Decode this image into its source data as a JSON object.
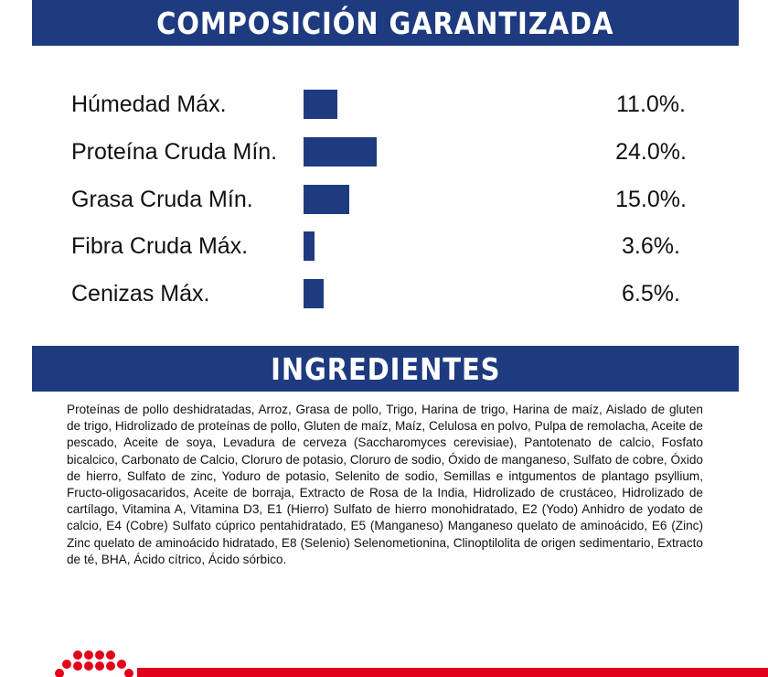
{
  "header": {
    "title": "COMPOSICIÓN GARANTIZADA"
  },
  "composition": {
    "color": "#1e3b80",
    "items": [
      {
        "label": "Húmedad Máx.",
        "value": 11.0,
        "value_label": "11.0%."
      },
      {
        "label": "Proteína Cruda Mín.",
        "value": 24.0,
        "value_label": "24.0%."
      },
      {
        "label": "Grasa Cruda Mín.",
        "value": 15.0,
        "value_label": "15.0%."
      },
      {
        "label": "Fibra Cruda Máx.",
        "value": 3.6,
        "value_label": "3.6%."
      },
      {
        "label": "Cenizas Máx.",
        "value": 6.5,
        "value_label": "6.5%."
      }
    ]
  },
  "ingredients": {
    "title": "INGREDIENTES",
    "text": "Proteínas de pollo deshidratadas, Arroz, Grasa de pollo, Trigo, Harina de trigo, Harina de maíz, Aislado de gluten de trigo, Hidrolizado de proteínas de pollo, Gluten de maíz, Maíz, Celulosa en polvo, Pulpa de remolacha, Aceite de pescado, Aceite de soya, Levadura de cerveza (Saccharomyces cerevisiae), Pantotenato de calcio, Fosfato bicalcico, Carbonato de Calcio, Cloruro de potasio, Cloruro de sodio, Óxido de manganeso, Sulfato de cobre, Óxido de hierro, Sulfato de zinc, Yoduro de potasio, Selenito de sodio, Semillas e intgumentos de plantago psyllium, Fructo-oligosacaridos, Aceite de borraja, Extracto de Rosa de la India, Hidrolizado de crustáceo, Hidrolizado de cartílago, Vitamina A, Vitamina D3, E1 (Hierro) Sulfato de hierro monohidratado, E2 (Yodo) Anhidro de yodato de calcio, E4 (Cobre) Sulfato cúprico pentahidratado, E5 (Manganeso) Manganeso quelato de aminoácido, E6 (Zinc) Zinc quelato de aminoácido hidratado, E8 (Selenio) Selenometionina, Clinoptilolita de origen sedimentario, Extracto de té, BHA, Ácido cítrico, Ácido sórbico."
  }
}
